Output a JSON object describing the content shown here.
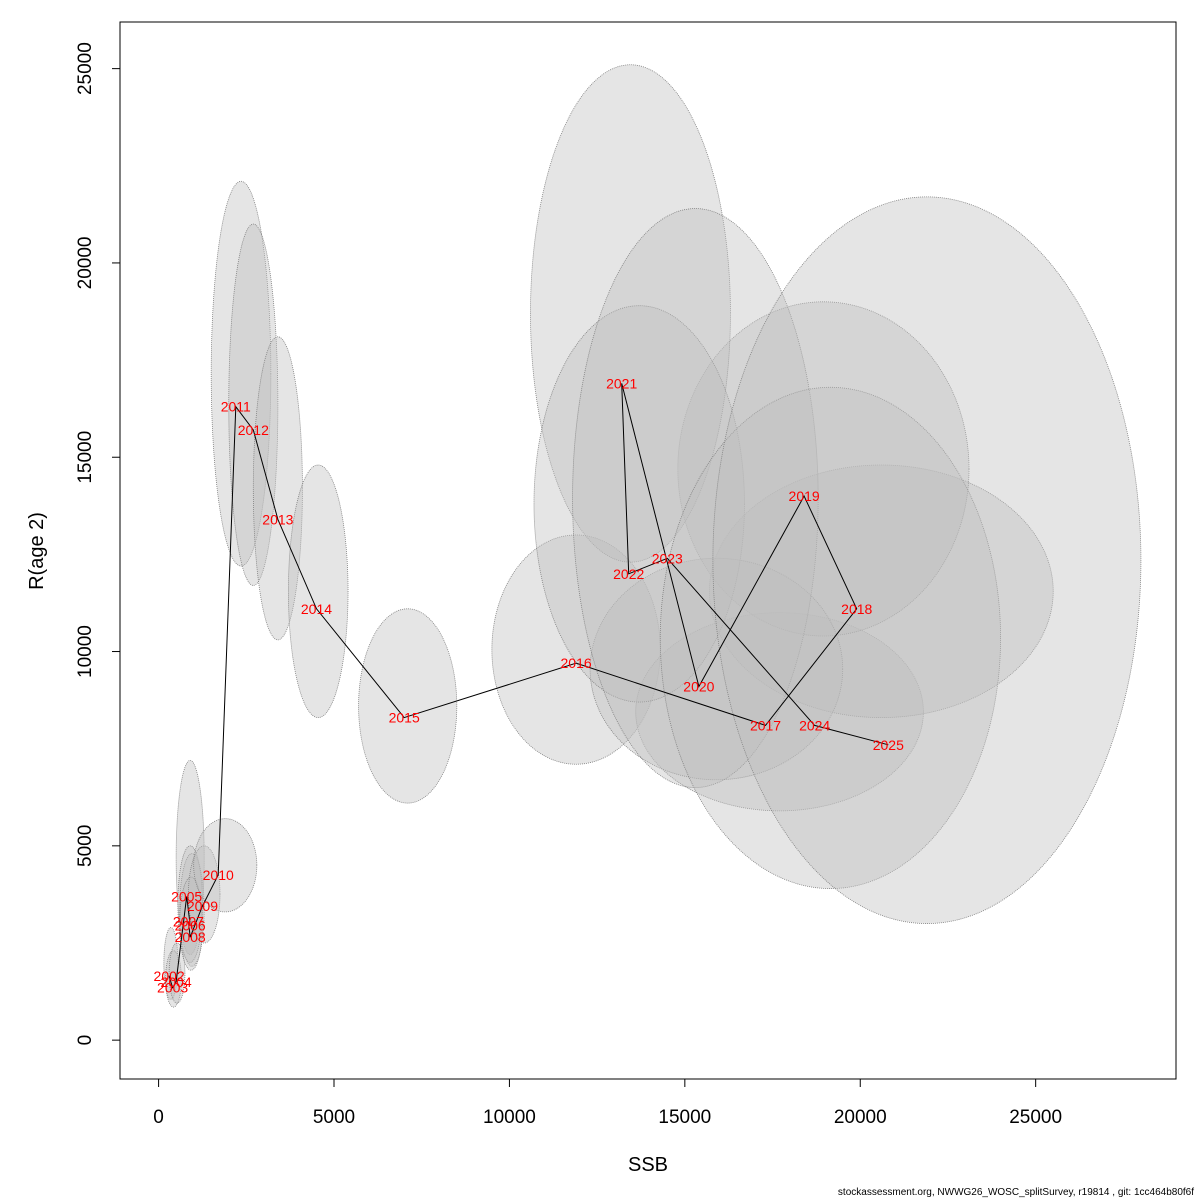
{
  "chart_data": {
    "type": "scatter",
    "xlabel": "SSB",
    "ylabel": "R(age 2)",
    "xlim": [
      -1100,
      29000
    ],
    "ylim": [
      -1000,
      26200
    ],
    "x_ticks": [
      0,
      5000,
      10000,
      15000,
      20000,
      25000
    ],
    "y_ticks": [
      0,
      5000,
      10000,
      15000,
      20000,
      25000
    ],
    "x_tick_labels": [
      "0",
      "5000",
      "10000",
      "15000",
      "20000",
      "25000"
    ],
    "y_tick_labels": [
      "0",
      "5000",
      "10000",
      "15000",
      "20000",
      "25000"
    ],
    "grid": false,
    "legend": "none",
    "colors": {
      "label": "#ff0000",
      "path": "#000000",
      "ellipse_fill": "#bebebe",
      "ellipse_stroke": "#808080"
    },
    "points": [
      {
        "year": "2002",
        "ssb": 300,
        "r": 1650,
        "ellipse": {
          "x_min": 150,
          "x_max": 550,
          "y_min": 1050,
          "y_max": 2900
        }
      },
      {
        "year": "2003",
        "ssb": 400,
        "r": 1350,
        "ellipse": {
          "x_min": 200,
          "x_max": 650,
          "y_min": 850,
          "y_max": 2300
        }
      },
      {
        "year": "2004",
        "ssb": 500,
        "r": 1500,
        "ellipse": {
          "x_min": 300,
          "x_max": 750,
          "y_min": 950,
          "y_max": 2500
        }
      },
      {
        "year": "2005",
        "ssb": 800,
        "r": 3700,
        "ellipse": {
          "x_min": 500,
          "x_max": 1300,
          "y_min": 2200,
          "y_max": 7200
        }
      },
      {
        "year": "2006",
        "ssb": 900,
        "r": 2950,
        "ellipse": {
          "x_min": 600,
          "x_max": 1300,
          "y_min": 1900,
          "y_max": 4800
        }
      },
      {
        "year": "2007",
        "ssb": 850,
        "r": 3050,
        "ellipse": {
          "x_min": 550,
          "x_max": 1250,
          "y_min": 2000,
          "y_max": 5000
        }
      },
      {
        "year": "2008",
        "ssb": 900,
        "r": 2650,
        "ellipse": {
          "x_min": 600,
          "x_max": 1250,
          "y_min": 1800,
          "y_max": 4200
        }
      },
      {
        "year": "2009",
        "ssb": 1250,
        "r": 3450,
        "ellipse": {
          "x_min": 850,
          "x_max": 1750,
          "y_min": 2500,
          "y_max": 5000
        }
      },
      {
        "year": "2010",
        "ssb": 1700,
        "r": 4250,
        "ellipse": {
          "x_min": 1000,
          "x_max": 2800,
          "y_min": 3300,
          "y_max": 5700
        }
      },
      {
        "year": "2011",
        "ssb": 2200,
        "r": 16300,
        "ellipse": {
          "x_min": 1500,
          "x_max": 3200,
          "y_min": 12200,
          "y_max": 22100
        }
      },
      {
        "year": "2012",
        "ssb": 2700,
        "r": 15700,
        "ellipse": {
          "x_min": 2000,
          "x_max": 3400,
          "y_min": 11700,
          "y_max": 21000
        }
      },
      {
        "year": "2013",
        "ssb": 3400,
        "r": 13400,
        "ellipse": {
          "x_min": 2700,
          "x_max": 4100,
          "y_min": 10300,
          "y_max": 18100
        }
      },
      {
        "year": "2014",
        "ssb": 4500,
        "r": 11100,
        "ellipse": {
          "x_min": 3700,
          "x_max": 5400,
          "y_min": 8300,
          "y_max": 14800
        }
      },
      {
        "year": "2015",
        "ssb": 7000,
        "r": 8300,
        "ellipse": {
          "x_min": 5700,
          "x_max": 8500,
          "y_min": 6100,
          "y_max": 11100
        }
      },
      {
        "year": "2016",
        "ssb": 11900,
        "r": 9700,
        "ellipse": {
          "x_min": 9500,
          "x_max": 14300,
          "y_min": 7100,
          "y_max": 13000
        }
      },
      {
        "year": "2017",
        "ssb": 17300,
        "r": 8100,
        "ellipse": {
          "x_min": 13600,
          "x_max": 21800,
          "y_min": 5900,
          "y_max": 11000
        }
      },
      {
        "year": "2018",
        "ssb": 19900,
        "r": 11100,
        "ellipse": {
          "x_min": 15700,
          "x_max": 25500,
          "y_min": 8300,
          "y_max": 14800
        }
      },
      {
        "year": "2019",
        "ssb": 18400,
        "r": 14000,
        "ellipse": {
          "x_min": 14800,
          "x_max": 23100,
          "y_min": 10400,
          "y_max": 19000
        }
      },
      {
        "year": "2020",
        "ssb": 15400,
        "r": 9100,
        "ellipse": {
          "x_min": 12300,
          "x_max": 19500,
          "y_min": 6700,
          "y_max": 12400
        }
      },
      {
        "year": "2021",
        "ssb": 13200,
        "r": 16900,
        "ellipse": {
          "x_min": 10600,
          "x_max": 16300,
          "y_min": 12300,
          "y_max": 25100
        }
      },
      {
        "year": "2022",
        "ssb": 13400,
        "r": 12000,
        "ellipse": {
          "x_min": 10700,
          "x_max": 16700,
          "y_min": 8700,
          "y_max": 18900
        }
      },
      {
        "year": "2023",
        "ssb": 14500,
        "r": 12400,
        "ellipse": {
          "x_min": 11800,
          "x_max": 18800,
          "y_min": 6500,
          "y_max": 21400
        }
      },
      {
        "year": "2024",
        "ssb": 18700,
        "r": 8100,
        "ellipse": {
          "x_min": 14300,
          "x_max": 24000,
          "y_min": 3900,
          "y_max": 16800
        }
      },
      {
        "year": "2025",
        "ssb": 20800,
        "r": 7600,
        "ellipse": {
          "x_min": 15800,
          "x_max": 28000,
          "y_min": 3000,
          "y_max": 21700
        }
      }
    ]
  },
  "footer": "stockassessment.org, NWWG26_WOSC_splitSurvey, r19814 , git: 1cc464b80f6f"
}
